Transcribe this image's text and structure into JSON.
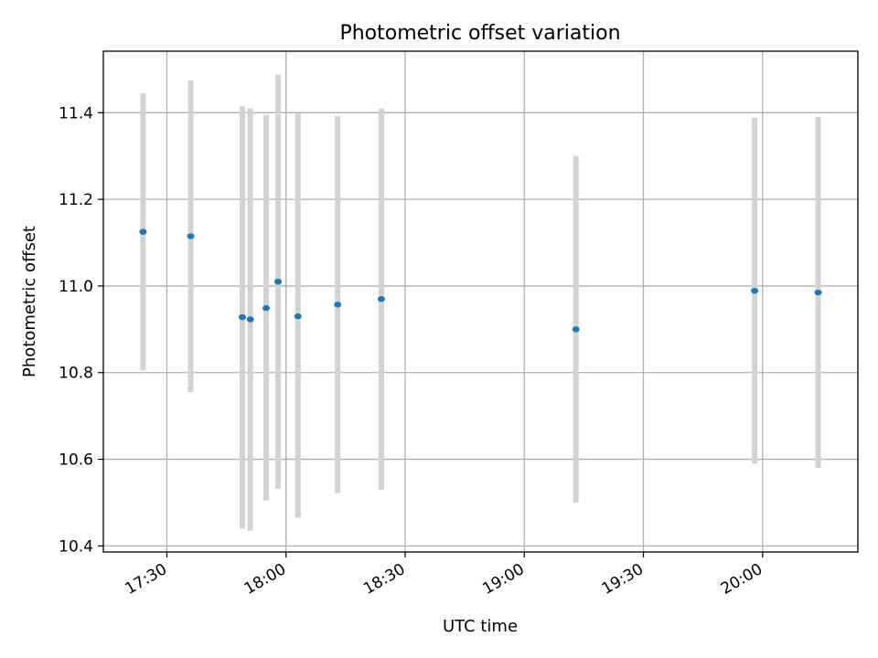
{
  "chart_data": {
    "type": "scatter",
    "title": "Photometric offset variation",
    "xlabel": "UTC time",
    "ylabel": "Photometric offset",
    "x_unit": "UTC time (HH:MM)",
    "xlim": [
      "17:14",
      "20:24"
    ],
    "ylim": [
      10.386,
      11.542
    ],
    "xticks": [
      "17:30",
      "18:00",
      "18:30",
      "19:00",
      "19:30",
      "20:00"
    ],
    "yticks": [
      10.4,
      10.6,
      10.8,
      11.0,
      11.2,
      11.4
    ],
    "grid": true,
    "colors": {
      "marker": "#1f77b4",
      "errorbar": "#d3d3d3",
      "grid": "#b0b0b0"
    },
    "series": [
      {
        "points": [
          {
            "x": "17:24",
            "y": 11.125,
            "ylo": 10.805,
            "yhi": 11.445
          },
          {
            "x": "17:36",
            "y": 11.115,
            "ylo": 10.755,
            "yhi": 11.475
          },
          {
            "x": "17:49",
            "y": 10.928,
            "ylo": 10.44,
            "yhi": 11.415
          },
          {
            "x": "17:51",
            "y": 10.923,
            "ylo": 10.435,
            "yhi": 11.41
          },
          {
            "x": "17:55",
            "y": 10.949,
            "ylo": 10.505,
            "yhi": 11.395
          },
          {
            "x": "17:58",
            "y": 11.01,
            "ylo": 10.532,
            "yhi": 11.487
          },
          {
            "x": "18:03",
            "y": 10.93,
            "ylo": 10.465,
            "yhi": 11.398
          },
          {
            "x": "18:13",
            "y": 10.957,
            "ylo": 10.522,
            "yhi": 11.392
          },
          {
            "x": "18:24",
            "y": 10.97,
            "ylo": 10.53,
            "yhi": 11.41
          },
          {
            "x": "19:13",
            "y": 10.9,
            "ylo": 10.5,
            "yhi": 11.3
          },
          {
            "x": "19:58",
            "y": 10.989,
            "ylo": 10.59,
            "yhi": 11.388
          },
          {
            "x": "20:14",
            "y": 10.985,
            "ylo": 10.58,
            "yhi": 11.39
          }
        ]
      }
    ]
  }
}
